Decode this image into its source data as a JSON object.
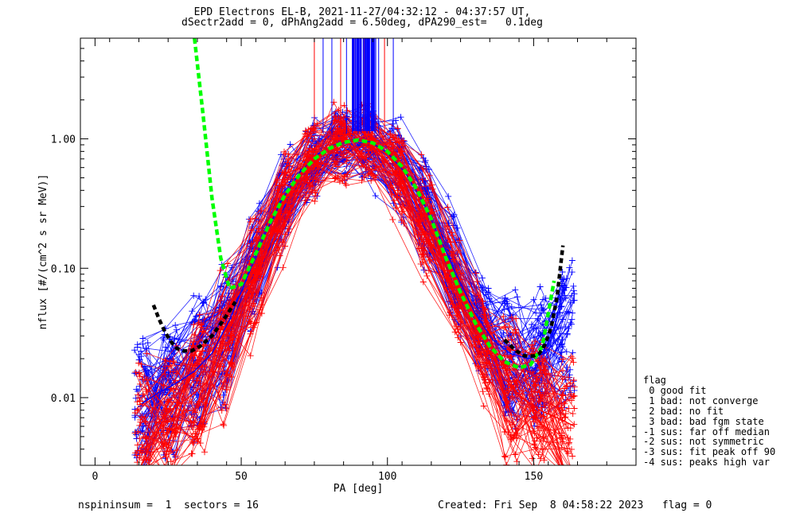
{
  "title_line1": "EPD Electrons EL-B, 2021-11-27/04:32:12 - 04:37:57 UT,",
  "title_line2": "dSectr2add = 0, dPhAng2add = 6.50deg, dPA290_est=   0.1deg",
  "footer": {
    "left": "nspininsum =  1  sectors = 16",
    "right": "Created: Fri Sep  8 04:58:22 2023   flag = 0"
  },
  "flag_legend": {
    "title": "flag",
    "items": [
      " 0 good fit",
      " 1 bad: not converge",
      " 2 bad: no fit",
      " 3 bad: bad fgm state",
      "-1 sus: far off median",
      "-2 sus: not symmetric",
      "-3 sus: fit peak off 90",
      "-4 sus: peaks high var"
    ]
  },
  "colors": {
    "series_blue": "#0000ff",
    "series_red": "#ff0000",
    "fit_green": "#00ff00",
    "fit_black": "#000000"
  },
  "chart_data": {
    "type": "line",
    "xlabel": "PA [deg]",
    "ylabel": "nflux [#/(cm^2 s sr MeV)]",
    "xlim": [
      -5,
      185
    ],
    "ylim": [
      0.003,
      6.0
    ],
    "yscale": "log",
    "xticks": [
      0,
      50,
      100,
      150
    ],
    "yticks": [
      0.01,
      0.1,
      1.0
    ],
    "ytick_labels": [
      "0.01",
      "0.10",
      "1.00"
    ],
    "series": [
      {
        "color": "blue",
        "x": [
          16,
          22,
          28,
          34,
          40,
          46,
          52,
          58,
          64,
          70,
          76,
          82,
          88,
          94,
          100,
          106,
          112,
          118,
          124,
          130,
          136,
          142,
          148,
          154,
          159
        ],
        "y": [
          0.009,
          0.011,
          0.013,
          0.016,
          0.022,
          0.04,
          0.085,
          0.18,
          0.34,
          0.55,
          0.75,
          0.9,
          0.98,
          0.95,
          0.78,
          0.55,
          0.33,
          0.17,
          0.085,
          0.045,
          0.028,
          0.022,
          0.02,
          0.022,
          0.03
        ]
      },
      {
        "color": "red",
        "x": [
          20,
          26,
          32,
          38,
          44,
          50,
          56,
          62,
          68,
          74,
          80,
          86,
          92,
          98,
          104,
          110,
          116,
          122,
          128,
          134,
          140,
          146,
          152,
          158,
          164
        ],
        "y": [
          0.006,
          0.008,
          0.01,
          0.013,
          0.02,
          0.045,
          0.11,
          0.24,
          0.45,
          0.68,
          0.85,
          0.97,
          0.96,
          0.82,
          0.58,
          0.35,
          0.18,
          0.09,
          0.045,
          0.025,
          0.014,
          0.01,
          0.008,
          0.007,
          0.006
        ]
      }
    ],
    "fit_green": {
      "x": [
        34,
        37,
        40,
        43,
        46,
        50,
        55,
        60,
        65,
        70,
        75,
        80,
        85,
        90,
        95,
        100,
        105,
        110,
        115,
        120,
        125,
        130,
        135,
        140,
        145,
        149,
        153,
        157
      ],
      "y": [
        6.0,
        1.5,
        0.35,
        0.12,
        0.07,
        0.075,
        0.13,
        0.23,
        0.37,
        0.53,
        0.7,
        0.84,
        0.94,
        0.98,
        0.93,
        0.8,
        0.61,
        0.41,
        0.24,
        0.12,
        0.065,
        0.038,
        0.025,
        0.019,
        0.017,
        0.018,
        0.025,
        0.08
      ]
    },
    "fit_black": [
      {
        "x": [
          20,
          22,
          24,
          26,
          28,
          30,
          33,
          36,
          40,
          44,
          48
        ],
        "y": [
          0.052,
          0.04,
          0.032,
          0.027,
          0.024,
          0.023,
          0.023,
          0.025,
          0.03,
          0.04,
          0.055
        ]
      },
      {
        "x": [
          140,
          144,
          147,
          150,
          152,
          154,
          156,
          158,
          160
        ],
        "y": [
          0.028,
          0.023,
          0.021,
          0.021,
          0.022,
          0.026,
          0.035,
          0.06,
          0.15
        ]
      }
    ],
    "high_flux_lines_x": [
      75,
      78,
      81,
      84,
      86,
      88,
      89,
      90,
      91,
      92,
      93,
      94,
      95,
      96,
      97,
      99,
      102
    ]
  }
}
